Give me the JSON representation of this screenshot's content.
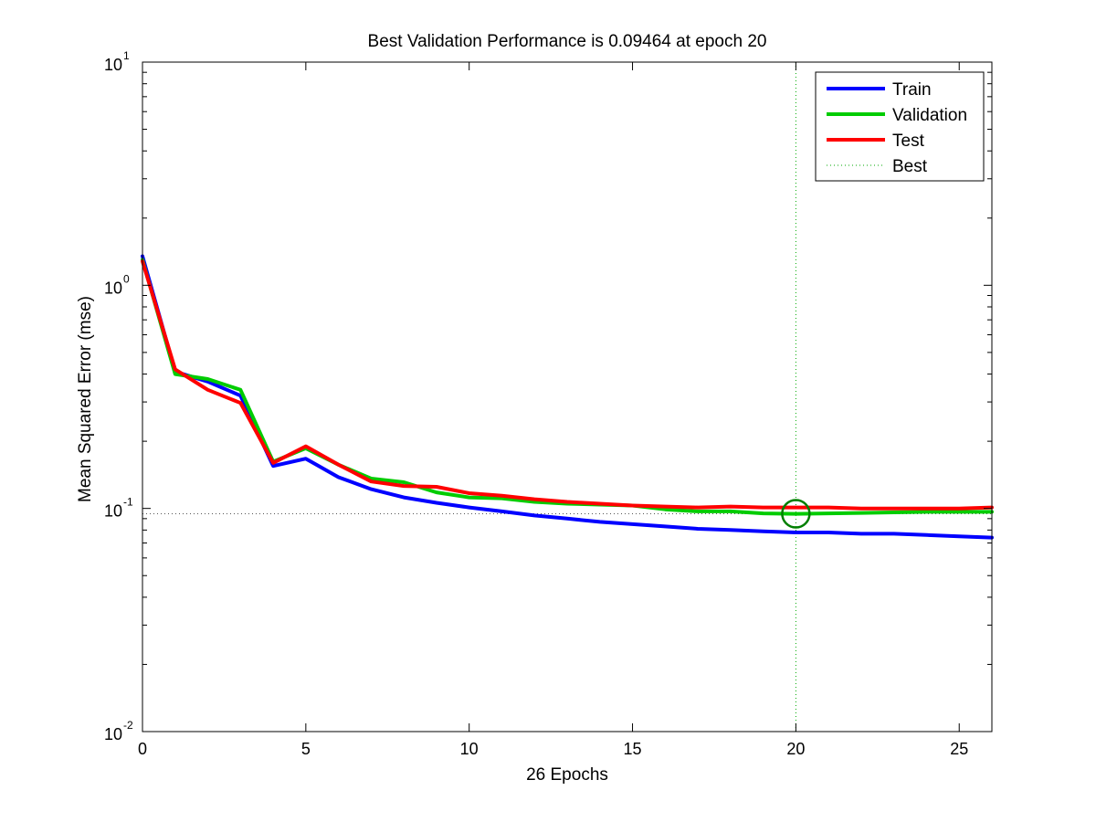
{
  "chart_data": {
    "type": "line",
    "title": "Best Validation Performance is 0.09464 at epoch 20",
    "xlabel": "26 Epochs",
    "ylabel": "Mean Squared Error  (mse)",
    "xlim": [
      0,
      26
    ],
    "ylim": [
      0.01,
      10
    ],
    "yscale": "log",
    "x_ticks": [
      0,
      5,
      10,
      15,
      20,
      25
    ],
    "y_ticks": [
      {
        "value": 0.01,
        "base": "10",
        "exp": "-2"
      },
      {
        "value": 0.1,
        "base": "10",
        "exp": "-1"
      },
      {
        "value": 1,
        "base": "10",
        "exp": "0"
      },
      {
        "value": 10,
        "base": "10",
        "exp": "1"
      }
    ],
    "grid": false,
    "legend_position": "top-right",
    "x": [
      0,
      1,
      2,
      3,
      4,
      5,
      6,
      7,
      8,
      9,
      10,
      11,
      12,
      13,
      14,
      15,
      16,
      17,
      18,
      19,
      20,
      21,
      22,
      23,
      24,
      25,
      26
    ],
    "series": [
      {
        "name": "Train",
        "color": "#0000ff",
        "values": [
          1.35,
          0.41,
          0.37,
          0.32,
          0.155,
          0.167,
          0.138,
          0.122,
          0.112,
          0.106,
          0.101,
          0.097,
          0.093,
          0.09,
          0.087,
          0.085,
          0.083,
          0.081,
          0.08,
          0.079,
          0.078,
          0.078,
          0.077,
          0.077,
          0.076,
          0.075,
          0.074
        ]
      },
      {
        "name": "Validation",
        "color": "#00cc00",
        "values": [
          1.3,
          0.4,
          0.38,
          0.34,
          0.162,
          0.186,
          0.157,
          0.136,
          0.131,
          0.118,
          0.112,
          0.111,
          0.107,
          0.105,
          0.104,
          0.103,
          0.099,
          0.097,
          0.097,
          0.095,
          0.0946,
          0.095,
          0.0955,
          0.096,
          0.0965,
          0.0965,
          0.0965
        ]
      },
      {
        "name": "Test",
        "color": "#ff0000",
        "values": [
          1.28,
          0.42,
          0.34,
          0.297,
          0.16,
          0.19,
          0.157,
          0.132,
          0.126,
          0.125,
          0.117,
          0.114,
          0.11,
          0.107,
          0.105,
          0.103,
          0.102,
          0.101,
          0.102,
          0.101,
          0.101,
          0.101,
          0.1,
          0.1,
          0.1,
          0.1,
          0.101
        ]
      }
    ],
    "legend": [
      {
        "label": "Train",
        "color": "#0000ff",
        "style": "solid"
      },
      {
        "label": "Validation",
        "color": "#00cc00",
        "style": "solid"
      },
      {
        "label": "Test",
        "color": "#ff0000",
        "style": "solid"
      },
      {
        "label": "Best",
        "color": "#00aa00",
        "style": "dotted"
      }
    ],
    "best": {
      "epoch": 20,
      "value": 0.09464,
      "color": "#007f00"
    }
  }
}
